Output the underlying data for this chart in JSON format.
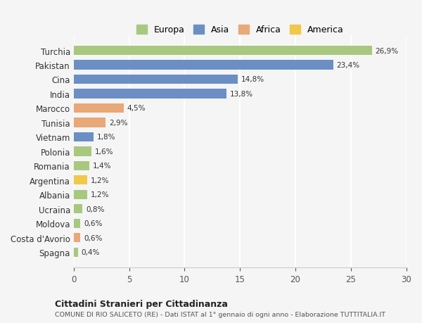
{
  "countries": [
    "Turchia",
    "Pakistan",
    "Cina",
    "India",
    "Marocco",
    "Tunisia",
    "Vietnam",
    "Polonia",
    "Romania",
    "Argentina",
    "Albania",
    "Ucraina",
    "Moldova",
    "Costa d'Avorio",
    "Spagna"
  ],
  "values": [
    26.9,
    23.4,
    14.8,
    13.8,
    4.5,
    2.9,
    1.8,
    1.6,
    1.4,
    1.2,
    1.2,
    0.8,
    0.6,
    0.6,
    0.4
  ],
  "labels": [
    "26,9%",
    "23,4%",
    "14,8%",
    "13,8%",
    "4,5%",
    "2,9%",
    "1,8%",
    "1,6%",
    "1,4%",
    "1,2%",
    "1,2%",
    "0,8%",
    "0,6%",
    "0,6%",
    "0,4%"
  ],
  "colors": [
    "#a8c880",
    "#6b8fc4",
    "#6b8fc4",
    "#6b8fc4",
    "#e8a878",
    "#e8a878",
    "#6b8fc4",
    "#a8c880",
    "#a8c880",
    "#f0c84a",
    "#a8c880",
    "#a8c880",
    "#a8c880",
    "#e8a878",
    "#a8c880"
  ],
  "legend_labels": [
    "Europa",
    "Asia",
    "Africa",
    "America"
  ],
  "legend_colors": [
    "#a8c880",
    "#6b8fc4",
    "#e8a878",
    "#f0c84a"
  ],
  "title": "Cittadini Stranieri per Cittadinanza",
  "subtitle": "COMUNE DI RIO SALICETO (RE) - Dati ISTAT al 1° gennaio di ogni anno - Elaborazione TUTTITALIA.IT",
  "xlim": [
    0,
    30
  ],
  "xticks": [
    0,
    5,
    10,
    15,
    20,
    25,
    30
  ],
  "bg_color": "#f5f5f5",
  "grid_color": "#ffffff",
  "bar_height": 0.65
}
